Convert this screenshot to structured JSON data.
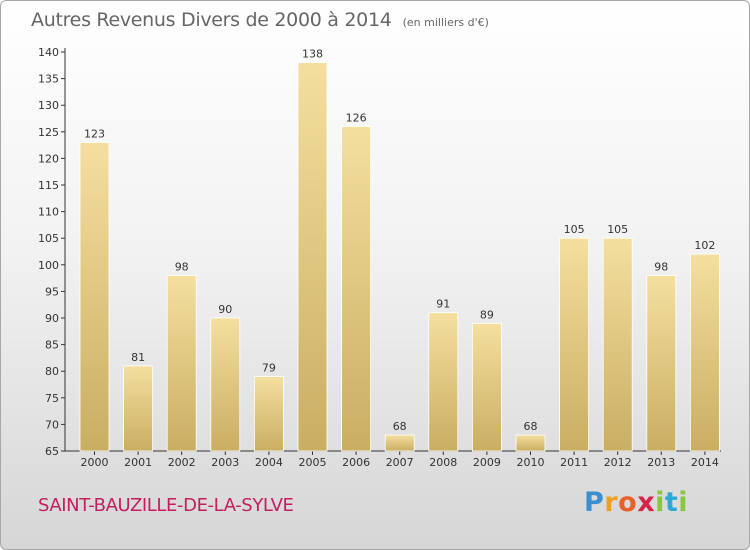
{
  "header": {
    "title": "Autres Revenus Divers de 2000 à 2014",
    "unit": "(en milliers d'€)"
  },
  "footer": {
    "commune": "SAINT-BAUZILLE-DE-LA-SYLVE",
    "logo_letters": [
      "P",
      "r",
      "o",
      "x",
      "i",
      "t",
      "i"
    ],
    "logo_colors": [
      "#3a8fd1",
      "#f0a020",
      "#e8602c",
      "#d6234a",
      "#8cc63f",
      "#2aa8d8",
      "#8cc63f"
    ]
  },
  "colors": {
    "bar_light": "#f5df9f",
    "bar_dark": "#c9ae62",
    "title": "#666666",
    "commune": "#c21e60"
  },
  "chart_data": {
    "type": "bar",
    "title": "Autres Revenus Divers de 2000 à 2014",
    "xlabel": "",
    "ylabel": "",
    "categories": [
      "2000",
      "2001",
      "2002",
      "2003",
      "2004",
      "2005",
      "2006",
      "2007",
      "2008",
      "2009",
      "2010",
      "2011",
      "2012",
      "2013",
      "2014"
    ],
    "values": [
      123,
      81,
      98,
      90,
      79,
      138,
      126,
      68,
      91,
      89,
      68,
      105,
      105,
      98,
      102
    ],
    "ylim": [
      65,
      140
    ],
    "yticks": [
      65,
      70,
      75,
      80,
      85,
      90,
      95,
      100,
      105,
      110,
      115,
      120,
      125,
      130,
      135,
      140
    ],
    "grid": false,
    "legend": "none"
  }
}
